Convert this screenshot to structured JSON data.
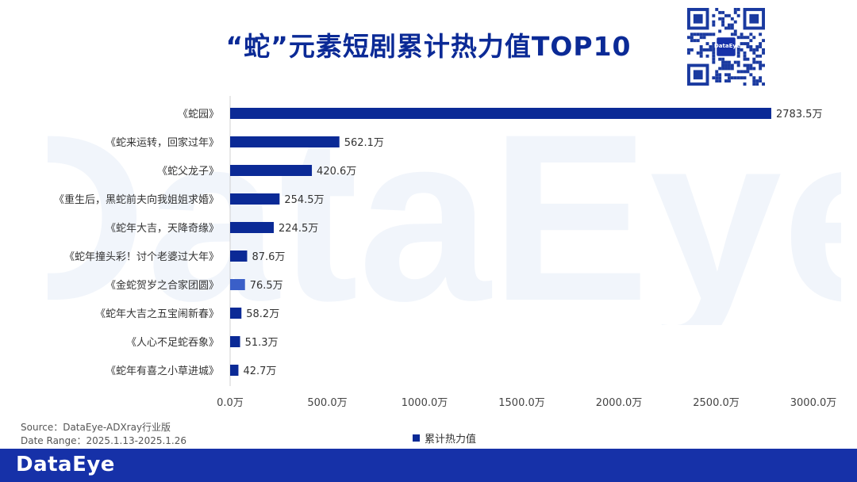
{
  "title": "“蛇”元素短剧累计热力值TOP10",
  "qr": {
    "logo_text": "DataEye"
  },
  "watermark": {
    "text": "DataEye"
  },
  "source": "Source：DataEye-ADXray行业版",
  "date_range": "Date Range：2025.1.13-2025.1.26",
  "footer": {
    "brand": "DataEye"
  },
  "colors": {
    "bar": "#0b2a96",
    "bar_alt": "#3a5fc8",
    "title": "#0b2a96",
    "footer": "#1631a8"
  },
  "chart_data": {
    "type": "bar",
    "orientation": "horizontal",
    "categories": [
      "《蛇园》",
      "《蛇来运转，回家过年》",
      "《蛇父龙子》",
      "《重生后，黑蛇前夫向我姐姐求婚》",
      "《蛇年大吉，天降奇缘》",
      "《蛇年撞头彩！讨个老婆过大年》",
      "《金蛇贺岁之合家团圆》",
      "《蛇年大吉之五宝闹新春》",
      "《人心不足蛇吞象》",
      "《蛇年有喜之小草进城》"
    ],
    "series": [
      {
        "name": "累计热力值",
        "values": [
          2783.5,
          562.1,
          420.6,
          254.5,
          224.5,
          87.6,
          76.5,
          58.2,
          51.3,
          42.7
        ],
        "labels": [
          "2783.5万",
          "562.1万",
          "420.6万",
          "254.5万",
          "224.5万",
          "87.6万",
          "76.5万",
          "58.2万",
          "51.3万",
          "42.7万"
        ]
      }
    ],
    "x_ticks": [
      "0.0万",
      "500.0万",
      "1000.0万",
      "1500.0万",
      "2000.0万",
      "2500.0万",
      "3000.0万"
    ],
    "x_tick_values": [
      0,
      500,
      1000,
      1500,
      2000,
      2500,
      3000
    ],
    "xlim": [
      0,
      3000
    ],
    "grid": false,
    "legend": "bottom-center"
  }
}
